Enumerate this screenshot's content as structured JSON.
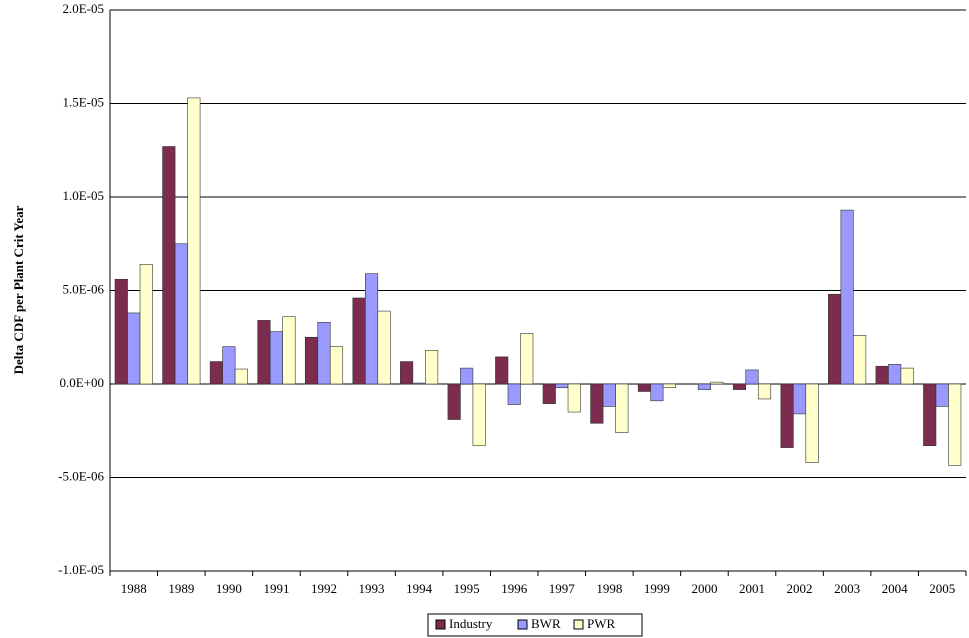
{
  "chart_data": {
    "type": "bar",
    "y_label": "Delta CDF per Plant Crit Year",
    "categories": [
      "1988",
      "1989",
      "1990",
      "1991",
      "1992",
      "1993",
      "1994",
      "1995",
      "1996",
      "1997",
      "1998",
      "1999",
      "2000",
      "2001",
      "2002",
      "2003",
      "2004",
      "2005"
    ],
    "series": [
      {
        "name": "Industry",
        "color": "#7b2c4f",
        "values": [
          5.6e-06,
          1.27e-05,
          1.2e-06,
          3.4e-06,
          2.5e-06,
          4.6e-06,
          1.2e-06,
          -1.9e-06,
          1.45e-06,
          -1.05e-06,
          -2.1e-06,
          -4e-07,
          0,
          -3e-07,
          -3.4e-06,
          4.8e-06,
          9.5e-07,
          -3.3e-06
        ]
      },
      {
        "name": "BWR",
        "color": "#9999ff",
        "values": [
          3.8e-06,
          7.5e-06,
          2e-06,
          2.8e-06,
          3.3e-06,
          5.9e-06,
          5e-08,
          8.5e-07,
          -1.1e-06,
          -2e-07,
          -1.2e-06,
          -9e-07,
          -3e-07,
          7.5e-07,
          -1.6e-06,
          9.3e-06,
          1.05e-06,
          -1.2e-06
        ]
      },
      {
        "name": "PWR",
        "color": "#ffffcc",
        "values": [
          6.4e-06,
          1.53e-05,
          8e-07,
          3.6e-06,
          2e-06,
          3.9e-06,
          1.8e-06,
          -3.3e-06,
          2.7e-06,
          -1.5e-06,
          -2.6e-06,
          -2e-07,
          1e-07,
          -8e-07,
          -4.2e-06,
          2.6e-06,
          8.5e-07,
          -4.35e-06
        ]
      }
    ],
    "ylim": [
      -1e-05,
      2e-05
    ],
    "yticks": [
      {
        "value": -1e-05,
        "label": "-1.0E-05"
      },
      {
        "value": -5e-06,
        "label": "-5.0E-06"
      },
      {
        "value": 0,
        "label": "0.0E+00"
      },
      {
        "value": 5e-06,
        "label": "5.0E-06"
      },
      {
        "value": 1e-05,
        "label": "1.0E-05"
      },
      {
        "value": 1.5e-05,
        "label": "1.5E-05"
      },
      {
        "value": 2e-05,
        "label": "2.0E-05"
      }
    ],
    "grid": true,
    "legend": "bottom"
  }
}
